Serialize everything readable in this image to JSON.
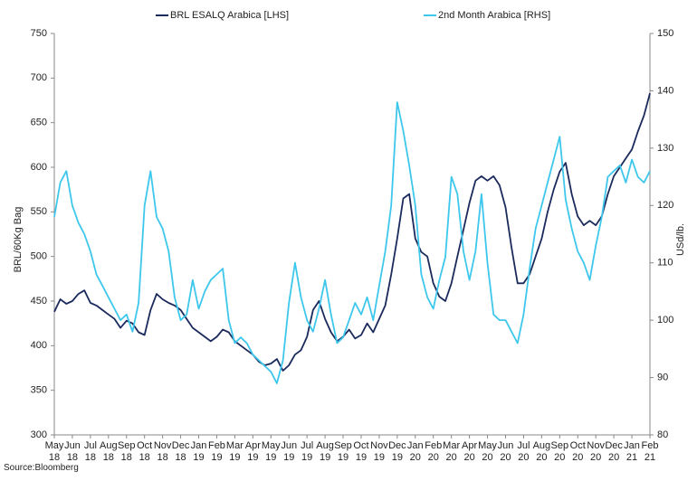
{
  "chart_data": {
    "type": "line",
    "categories": [
      "May 18",
      null,
      null,
      "Jun 18",
      null,
      null,
      "Jul 18",
      null,
      null,
      "Aug 18",
      null,
      null,
      "Sep 18",
      null,
      null,
      "Oct 18",
      null,
      null,
      "Nov 18",
      null,
      null,
      "Dec 18",
      null,
      null,
      "Jan 19",
      null,
      null,
      "Feb 19",
      null,
      null,
      "Mar 19",
      null,
      null,
      "Apr 19",
      null,
      null,
      "May 19",
      null,
      null,
      "Jun 19",
      null,
      null,
      "Jul 19",
      null,
      null,
      "Aug 19",
      null,
      null,
      "Sep 19",
      null,
      null,
      "Oct 19",
      null,
      null,
      "Nov 19",
      null,
      null,
      "Dec 19",
      null,
      null,
      "Jan 20",
      null,
      null,
      "Feb 20",
      null,
      null,
      "Mar 20",
      null,
      null,
      "Apr 20",
      null,
      null,
      "May 20",
      null,
      null,
      "Jun 20",
      null,
      null,
      "Jul 20",
      null,
      null,
      "Aug 20",
      null,
      null,
      "Sep 20",
      null,
      null,
      "Oct 20",
      null,
      null,
      "Nov 20",
      null,
      null,
      "Dec 20",
      null,
      null,
      "Jan 21",
      null,
      null,
      "Feb 21"
    ],
    "series": [
      {
        "name": "BRL ESALQ Arabica [LHS]",
        "color": "#1b2a5c",
        "axis": "y",
        "values": [
          438,
          452,
          447,
          450,
          458,
          462,
          448,
          445,
          440,
          435,
          430,
          420,
          428,
          425,
          415,
          412,
          440,
          458,
          452,
          448,
          445,
          440,
          430,
          420,
          415,
          410,
          405,
          410,
          418,
          415,
          405,
          400,
          395,
          390,
          382,
          378,
          380,
          385,
          372,
          378,
          390,
          395,
          410,
          440,
          450,
          430,
          415,
          405,
          410,
          418,
          408,
          412,
          425,
          415,
          430,
          445,
          480,
          520,
          565,
          570,
          520,
          505,
          500,
          470,
          455,
          450,
          470,
          500,
          530,
          560,
          585,
          590,
          585,
          590,
          580,
          555,
          510,
          470,
          470,
          480,
          500,
          520,
          550,
          575,
          595,
          605,
          570,
          545,
          535,
          540,
          535,
          545,
          570,
          590,
          600,
          610,
          620,
          640,
          658,
          683
        ]
      },
      {
        "name": "2nd Month Arabica [RHS]",
        "color": "#3ec7ec",
        "axis": "y2",
        "values": [
          118,
          124,
          126,
          120,
          117,
          115,
          112,
          108,
          106,
          104,
          102,
          100,
          101,
          98,
          103,
          120,
          126,
          118,
          116,
          112,
          104,
          100,
          101,
          107,
          102,
          105,
          107,
          108,
          109,
          100,
          96,
          97,
          96,
          94,
          93,
          92,
          91,
          89,
          93,
          103,
          110,
          104,
          100,
          98,
          102,
          107,
          101,
          96,
          97,
          100,
          103,
          101,
          104,
          100,
          106,
          112,
          120,
          138,
          133,
          127,
          120,
          108,
          104,
          102,
          107,
          111,
          125,
          122,
          112,
          107,
          112,
          122,
          110,
          101,
          100,
          100,
          98,
          96,
          101,
          109,
          116,
          120,
          124,
          128,
          132,
          121,
          116,
          112,
          110,
          107,
          113,
          118,
          125,
          126,
          127,
          124,
          128,
          125,
          124,
          126
        ]
      }
    ],
    "ylabel": "BRL/60Kg Bag",
    "y2label": "USd/lb.",
    "ylim": [
      300,
      750
    ],
    "yticks": [
      300,
      350,
      400,
      450,
      500,
      550,
      600,
      650,
      700,
      750
    ],
    "y2lim": [
      80,
      150
    ],
    "y2ticks": [
      80,
      90,
      100,
      110,
      120,
      130,
      140,
      150
    ],
    "source": "Source:Bloomberg"
  }
}
